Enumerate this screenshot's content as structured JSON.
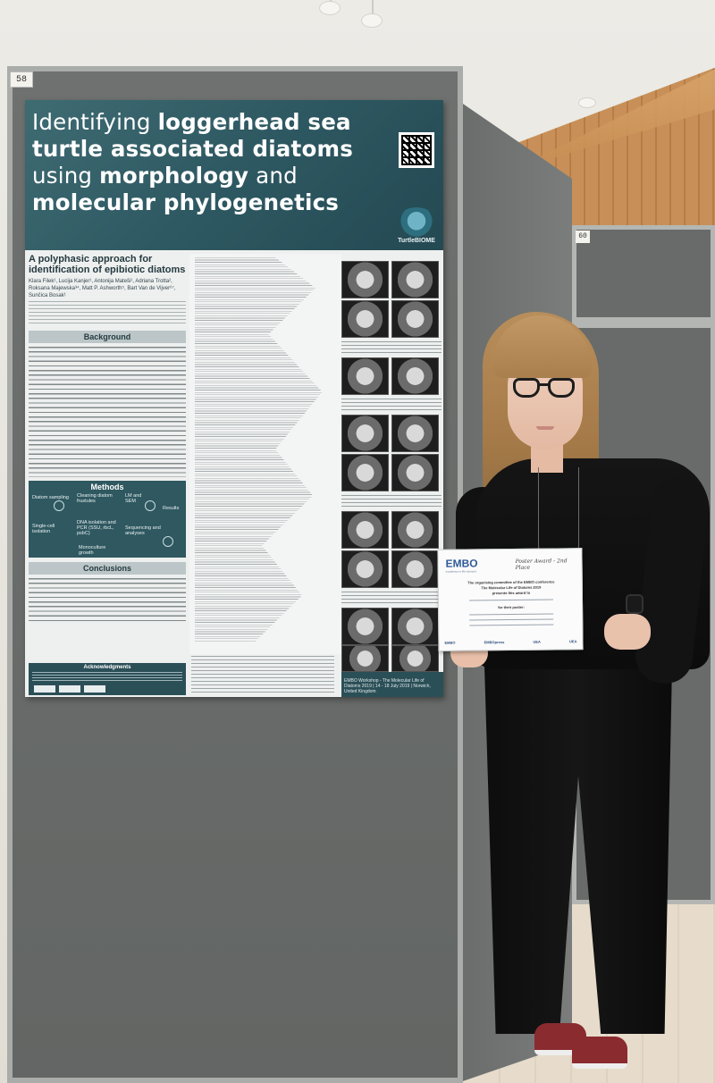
{
  "board": {
    "label_main": "58",
    "label_right": "60"
  },
  "poster": {
    "title_segments": [
      {
        "text": "Identifying ",
        "bold": false
      },
      {
        "text": "loggerhead sea turtle associated diatoms",
        "bold": true
      },
      {
        "text": " using ",
        "bold": false
      },
      {
        "text": "morphology",
        "bold": true
      },
      {
        "text": " and ",
        "bold": false
      },
      {
        "text": "molecular phylogenetics",
        "bold": true
      }
    ],
    "logo_text": "TurtleBIOME",
    "subtitle": "A polyphasic approach for identification of epibiotic diatoms",
    "authors": "Klara Filek¹, Lucija Kanjer¹, Antonija Mateši¹, Adriana Trotta², Roksana Majewska³⁴, Matt P. Ashworth⁵, Bart Van de Vijver⁶⁷, Sunčica Bosak¹",
    "sections": {
      "background": "Background",
      "methods": "Methods",
      "conclusions": "Conclusions",
      "acknowledgments": "Acknowledgments"
    },
    "methods_steps": [
      "Diatom sampling",
      "Cleaning diatom frustules",
      "LM and SEM",
      "Results",
      "Single-cell isolation",
      "DNA isolation and PCR (SSU, rbcL, psbC)",
      "Sequencing and analyses",
      "Monoculture growth"
    ],
    "footer": "EMBO Workshop - The Molecular Life of Diatoms 2019 | 14 - 18 July 2019 | Norwich, United Kingdom"
  },
  "certificate": {
    "brand": "EMBO",
    "brand_sub": "excellence in life sciences",
    "award": "Poster Award - 2nd Place",
    "line1": "The organising committee of the EMBO conference",
    "line2": "The Molecular Life of Diatoms 2019",
    "line3": "presents this award to",
    "line4": "for their poster:",
    "logos": [
      "EMBO",
      "EMBOpress",
      "UEA",
      "UEA"
    ]
  }
}
